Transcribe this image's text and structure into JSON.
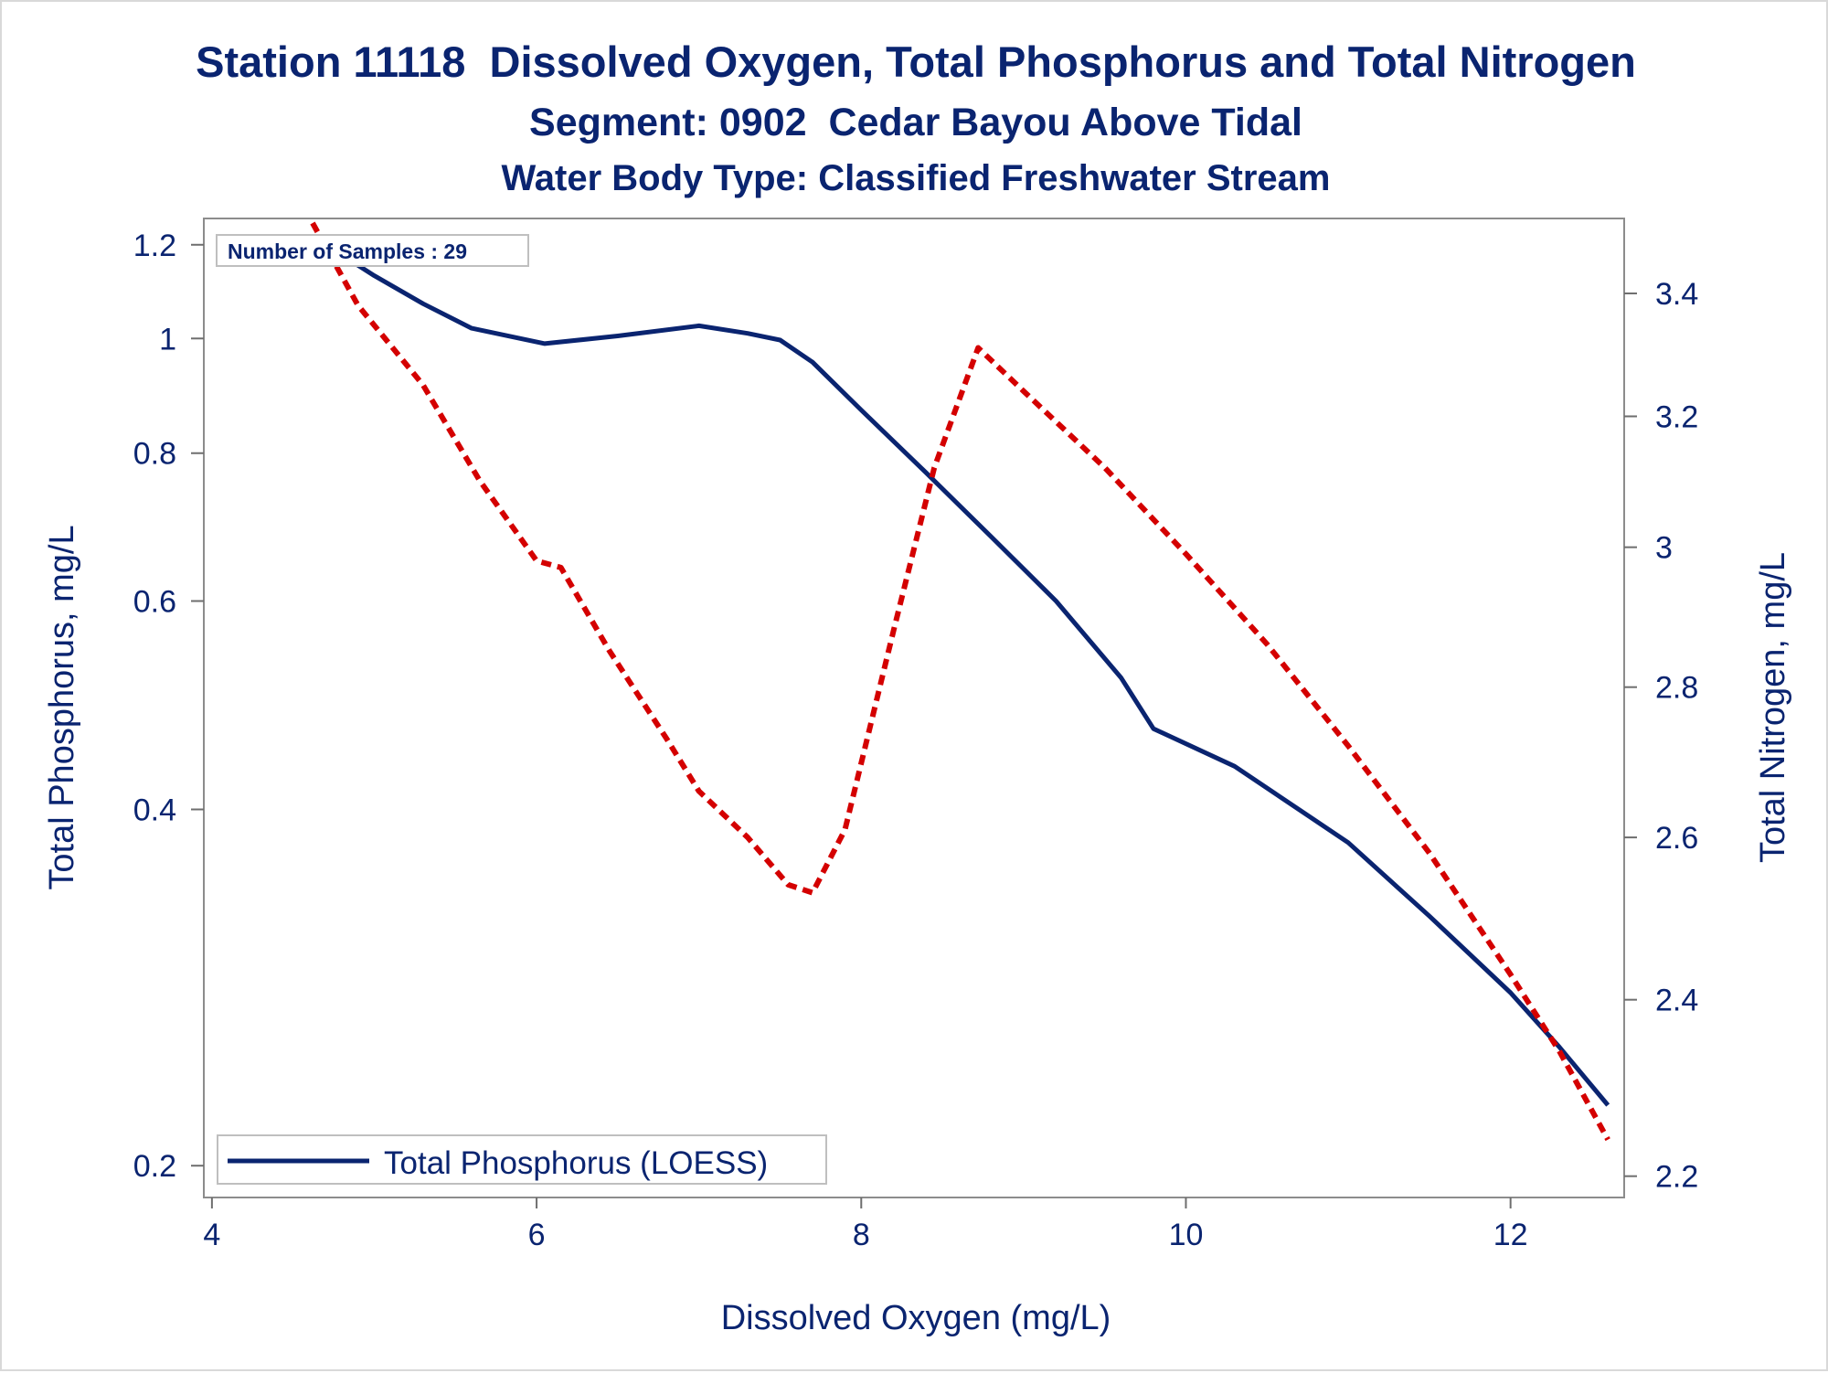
{
  "chart_data": {
    "type": "line",
    "title": "Station 11118  Dissolved Oxygen, Total Phosphorus and Total Nitrogen",
    "subtitle": "Segment: 0902  Cedar Bayou Above Tidal",
    "subtitle2": "Water Body Type: Classified Freshwater Stream",
    "xlabel": "Dissolved Oxygen (mg/L)",
    "ylabel": "Total Phosphorus, mg/L",
    "y2label": "Total Nitrogen, mg/L",
    "xlim": [
      3.95,
      12.7
    ],
    "x_ticks": [
      4,
      6,
      8,
      10,
      12
    ],
    "x_tick_labels": [
      "4",
      "6",
      "8",
      "10",
      "12"
    ],
    "y_scale": "log",
    "ylim": [
      0.188,
      1.263
    ],
    "y_ticks": [
      0.2,
      0.4,
      0.6,
      0.8,
      1.0,
      1.2
    ],
    "y_tick_labels": [
      "0.2",
      "0.4",
      "0.6",
      "0.8",
      "1",
      "1.2"
    ],
    "y2_scale": "log",
    "y2lim": [
      2.177,
      3.528
    ],
    "y2_ticks": [
      2.2,
      2.4,
      2.6,
      2.8,
      3.0,
      3.2,
      3.4
    ],
    "y2_tick_labels": [
      "2.2",
      "2.4",
      "2.6",
      "2.8",
      "3",
      "3.2",
      "3.4"
    ],
    "annotation": "Number of Samples : 29",
    "legend": {
      "position": "bottom-left",
      "entries": [
        "Total Phosphorus (LOESS)"
      ]
    },
    "grid": false,
    "series": [
      {
        "name": "Total Phosphorus (LOESS)",
        "axis": "left",
        "color": "#0a2470",
        "style": "solid",
        "x": [
          4.62,
          5.0,
          5.3,
          5.6,
          5.9,
          6.05,
          6.5,
          7.0,
          7.3,
          7.5,
          7.7,
          8.0,
          8.4,
          8.8,
          9.2,
          9.6,
          9.8,
          10.3,
          11.0,
          11.5,
          12.0,
          12.3,
          12.6
        ],
        "y": [
          1.22,
          1.13,
          1.07,
          1.02,
          1.0,
          0.99,
          1.005,
          1.025,
          1.01,
          0.997,
          0.955,
          0.87,
          0.77,
          0.68,
          0.6,
          0.517,
          0.468,
          0.435,
          0.375,
          0.325,
          0.28,
          0.252,
          0.225
        ]
      },
      {
        "name": "",
        "axis": "right",
        "color": "#d40000",
        "style": "dashed",
        "x": [
          4.62,
          4.9,
          5.3,
          5.65,
          6.0,
          6.15,
          6.45,
          6.8,
          7.0,
          7.3,
          7.55,
          7.7,
          7.9,
          8.2,
          8.45,
          8.72,
          9.0,
          9.5,
          10.0,
          10.5,
          11.0,
          11.5,
          12.0,
          12.3,
          12.6
        ],
        "y": [
          3.52,
          3.38,
          3.25,
          3.1,
          2.98,
          2.97,
          2.85,
          2.73,
          2.66,
          2.6,
          2.54,
          2.53,
          2.61,
          2.88,
          3.12,
          3.31,
          3.24,
          3.12,
          2.99,
          2.86,
          2.72,
          2.58,
          2.43,
          2.34,
          2.24
        ]
      }
    ]
  }
}
